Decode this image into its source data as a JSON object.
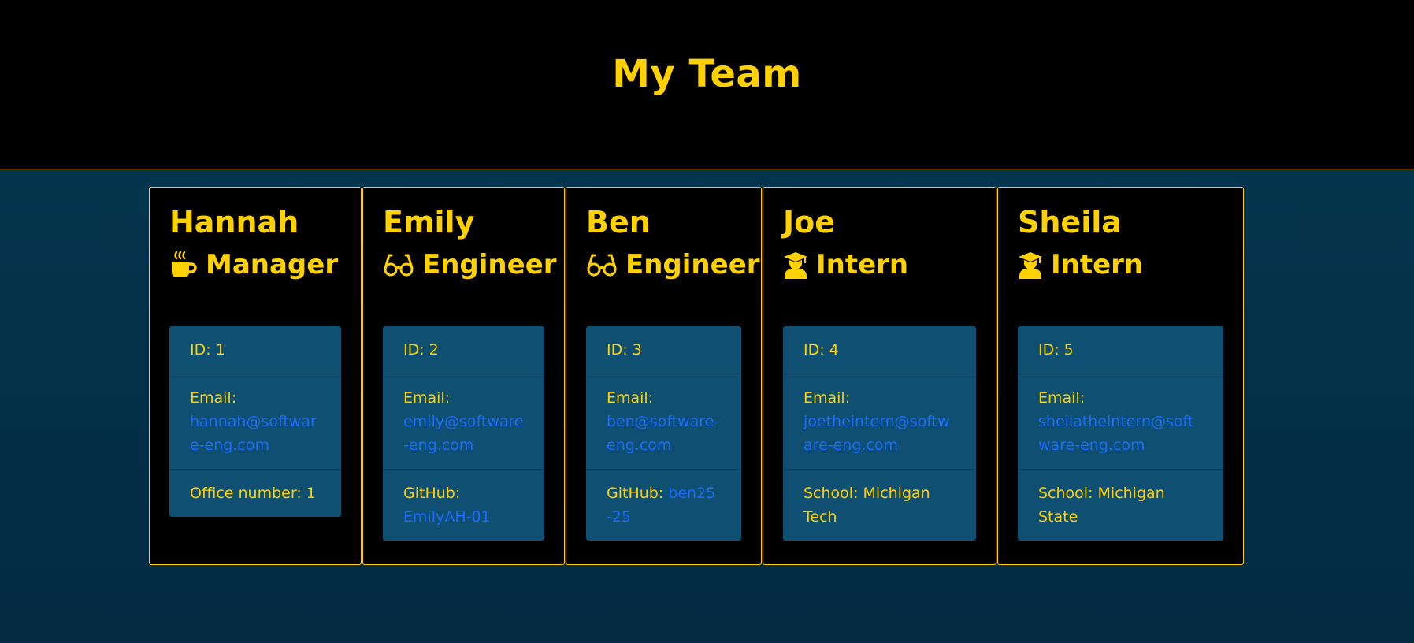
{
  "header": {
    "title": "My Team"
  },
  "colors": {
    "accent": "#ffd100",
    "card_bg": "#000000",
    "info_bg": "#0f4f72",
    "link": "#1a6cff"
  },
  "team": [
    {
      "name": "Hannah",
      "role": "Manager",
      "icon": "coffee-icon",
      "id_text": "ID: 1",
      "email_label": "Email:",
      "email": "hannah@software-eng.com",
      "extra_label": "Office number: 1",
      "extra_link": ""
    },
    {
      "name": "Emily",
      "role": "Engineer",
      "icon": "glasses-icon",
      "id_text": "ID: 2",
      "email_label": "Email:",
      "email": "emily@software-eng.com",
      "extra_label": "GitHub:",
      "extra_link": "EmilyAH-01"
    },
    {
      "name": "Ben",
      "role": "Engineer",
      "icon": "glasses-icon",
      "id_text": "ID: 3",
      "email_label": "Email:",
      "email": "ben@software-eng.com",
      "extra_label": "GitHub:",
      "extra_link": "ben25-25"
    },
    {
      "name": "Joe",
      "role": "Intern",
      "icon": "graduate-icon",
      "id_text": "ID: 4",
      "email_label": "Email:",
      "email": "joetheintern@software-eng.com",
      "extra_label": "School: Michigan Tech",
      "extra_link": ""
    },
    {
      "name": "Sheila",
      "role": "Intern",
      "icon": "graduate-icon",
      "id_text": "ID: 5",
      "email_label": "Email:",
      "email": "sheilatheintern@software-eng.com",
      "extra_label": "School: Michigan State",
      "extra_link": ""
    }
  ]
}
